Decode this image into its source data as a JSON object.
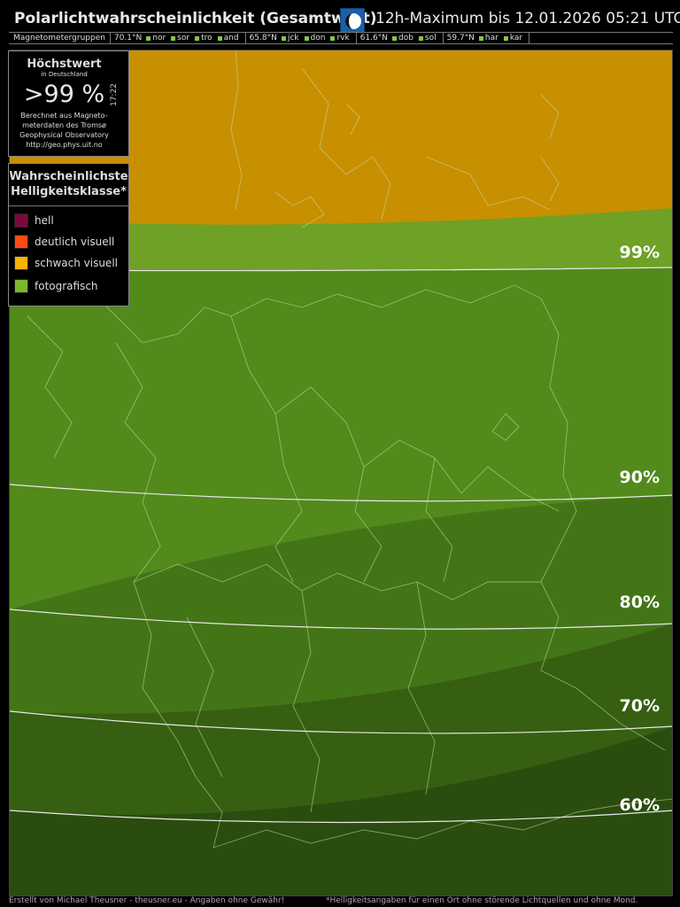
{
  "header": {
    "title": "Polarlichtwahrscheinlichkeit (Gesamtwert)",
    "moon_icon": "moon-phase-icon",
    "subtitle": "12h-Maximum bis 12.01.2026 05:21 UTC"
  },
  "magnetometer": {
    "label": "Magnetometergruppen",
    "groups": [
      {
        "lat": "70.1°N",
        "stations": [
          "nor",
          "sor",
          "tro",
          "and"
        ]
      },
      {
        "lat": "65.8°N",
        "stations": [
          "jck",
          "don",
          "rvk"
        ]
      },
      {
        "lat": "61.6°N",
        "stations": [
          "dob",
          "sol"
        ]
      },
      {
        "lat": "59.7°N",
        "stations": [
          "har",
          "kar"
        ]
      }
    ],
    "station_color": "#8bc34a"
  },
  "infobox": {
    "title": "Höchstwert",
    "subtitle": "in Deutschland",
    "value": ">99 %",
    "time": "17:22",
    "note_lines": [
      "Berechnet aus Magneto-",
      "meterdaten des Tromsø",
      "Geophysical Observatory",
      "http://geo.phys.uit.no"
    ]
  },
  "legend": {
    "title_lines": [
      "Wahrscheinlichste",
      "Helligkeitsklasse*"
    ],
    "items": [
      {
        "label": "hell",
        "color": "#7b0a3c"
      },
      {
        "label": "deutlich visuell",
        "color": "#ff4a12"
      },
      {
        "label": "schwach visuell",
        "color": "#f4b400"
      },
      {
        "label": "fotografisch",
        "color": "#7cb62b"
      }
    ]
  },
  "map": {
    "zone_colors": {
      "schwach_visuell": "#c88f00",
      "p99": "#6ea125",
      "p90": "#528a1c",
      "p80": "#437516",
      "p70": "#365f12",
      "p60": "#2b4c0f"
    },
    "contour_labels": [
      "99%",
      "90%",
      "80%",
      "70%",
      "60%"
    ]
  },
  "footer": {
    "credit": "Erstellt von Michael Theusner - theusner.eu - Angaben ohne Gewähr!",
    "disclaimer": "*Helligkeitsangaben für einen Ort ohne störende Lichtquellen und ohne Mond."
  }
}
